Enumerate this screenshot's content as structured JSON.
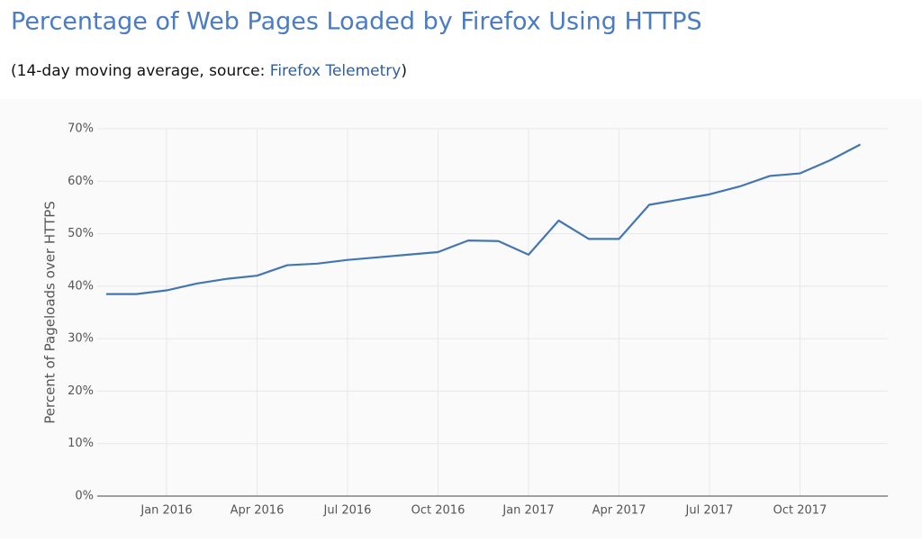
{
  "chart_data": {
    "type": "line",
    "title": "Percentage of Web Pages Loaded by Firefox Using HTTPS",
    "subtitle": [
      "(14-day moving average, source: ",
      "Firefox Telemetry",
      ")"
    ],
    "y_label": "Percent of Pageloads over HTTPS",
    "x": [
      "2015-11",
      "2015-12",
      "2016-01",
      "2016-02",
      "2016-03",
      "2016-04",
      "2016-05",
      "2016-06",
      "2016-07",
      "2016-08",
      "2016-09",
      "2016-10",
      "2016-11",
      "2016-12",
      "2017-01",
      "2017-02",
      "2017-03",
      "2017-04",
      "2017-05",
      "2017-06",
      "2017-07",
      "2017-08",
      "2017-09",
      "2017-10",
      "2017-11",
      "2017-12"
    ],
    "series": [
      {
        "color": "#4477b0",
        "values": [
          38.5,
          38.5,
          39.2,
          40.5,
          41.4,
          42,
          44,
          44.3,
          45,
          45.5,
          46,
          46.5,
          48.7,
          48.6,
          46,
          52.5,
          49,
          49,
          55.5,
          56.5,
          57.5,
          59,
          61,
          61.5,
          64,
          67
        ]
      }
    ],
    "xlim": [
      "2015-10",
      "2018-01"
    ],
    "xticks": [
      {
        "value": "2016-01",
        "label": "Jan 2016"
      },
      {
        "value": "2016-04",
        "label": "Apr 2016"
      },
      {
        "value": "2016-07",
        "label": "Jul 2016"
      },
      {
        "value": "2016-10",
        "label": "Oct 2016"
      },
      {
        "value": "2017-01",
        "label": "Jan 2017"
      },
      {
        "value": "2017-04",
        "label": "Apr 2017"
      },
      {
        "value": "2017-07",
        "label": "Jul 2017"
      },
      {
        "value": "2017-10",
        "label": "Oct 2017"
      }
    ],
    "ylim": [
      0,
      70
    ],
    "yticks": [
      {
        "value": 0,
        "label": "0%"
      },
      {
        "value": 10,
        "label": "10%"
      },
      {
        "value": 20,
        "label": "20%"
      },
      {
        "value": 30,
        "label": "30%"
      },
      {
        "value": 40,
        "label": "40%"
      },
      {
        "value": 50,
        "label": "50%"
      },
      {
        "value": 60,
        "label": "60%"
      },
      {
        "value": 70,
        "label": "70%"
      }
    ],
    "grid": true
  }
}
